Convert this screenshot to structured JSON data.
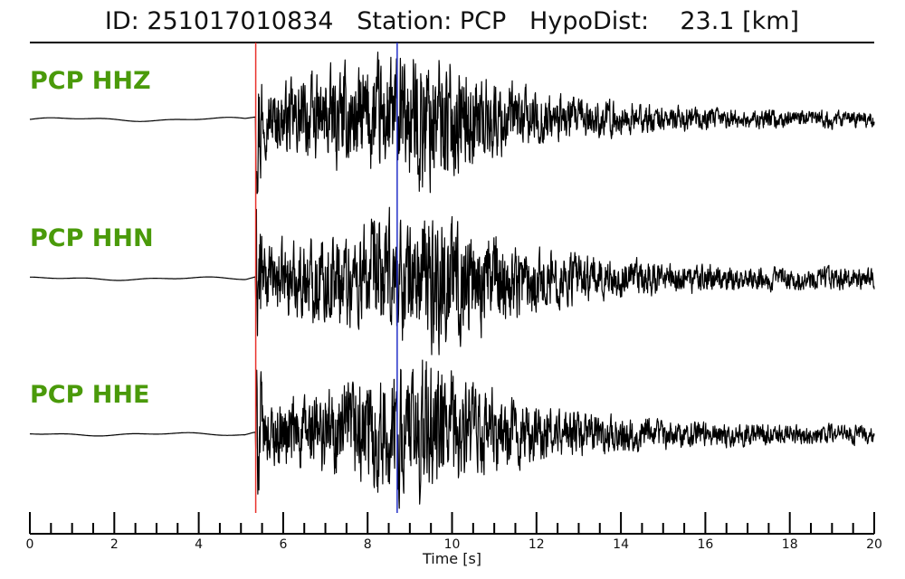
{
  "title": "ID: 251017010834   Station: PCP   HypoDist:    23.1 [km]",
  "colors": {
    "label": "#4a9a0a",
    "trace": "#000000",
    "p_pick": "#e8302a",
    "s_pick": "#2430c8"
  },
  "chart_data": {
    "type": "line",
    "xlabel": "Time [s]",
    "xlim": [
      0,
      20
    ],
    "x_ticks": [
      0,
      2,
      4,
      6,
      8,
      10,
      12,
      14,
      16,
      18,
      20
    ],
    "tick_labels": [
      "0",
      "2",
      "4",
      "6",
      "8",
      "10",
      "12",
      "14",
      "16",
      "18",
      "20"
    ],
    "minor_tick_step": 0.5,
    "picks": [
      {
        "phase": "P",
        "time": 5.35,
        "color": "#e8302a"
      },
      {
        "phase": "S",
        "time": 8.7,
        "color": "#2430c8"
      }
    ],
    "series": [
      {
        "name": "PCP HHZ",
        "onset": 5.35,
        "peak_time": 9.2,
        "noise_level": 0.02,
        "peak_amp": 1.0,
        "coda_amp": 0.1
      },
      {
        "name": "PCP HHN",
        "onset": 5.35,
        "peak_time": 9.5,
        "noise_level": 0.015,
        "peak_amp": 1.0,
        "coda_amp": 0.12
      },
      {
        "name": "PCP HHE",
        "onset": 5.35,
        "peak_time": 9.3,
        "noise_level": 0.015,
        "peak_amp": 1.0,
        "coda_amp": 0.11
      }
    ]
  }
}
